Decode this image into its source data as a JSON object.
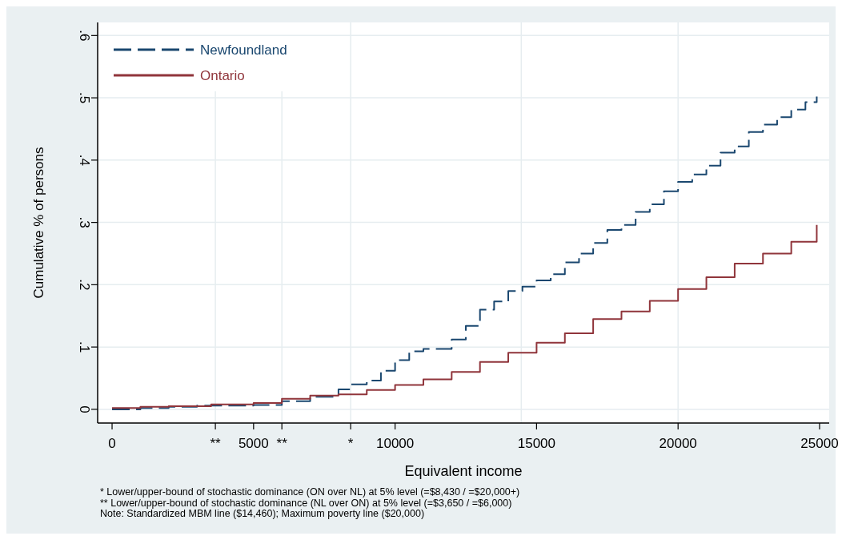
{
  "chart_data": {
    "type": "step",
    "xlabel": "Equivalent income",
    "ylabel": "Cumulative % of persons",
    "xlim": [
      -510,
      25340
    ],
    "ylim": [
      -0.022,
      0.621
    ],
    "xticks": [
      0,
      {
        "value": 3650,
        "label": "**"
      },
      5000,
      {
        "value": 6000,
        "label": "**"
      },
      {
        "value": 8430,
        "label": "*"
      },
      10000,
      15000,
      20000,
      25000
    ],
    "yticks": [
      {
        "value": 0,
        "label": "0"
      },
      {
        "value": 0.1,
        "label": ".1"
      },
      {
        "value": 0.2,
        "label": ".2"
      },
      {
        "value": 0.3,
        "label": ".3"
      },
      {
        "value": 0.4,
        "label": ".4"
      },
      {
        "value": 0.5,
        "label": ".5"
      },
      {
        "value": 0.6,
        "label": ".6"
      }
    ],
    "grid": "y",
    "legend": "top left",
    "ref_lines": [
      {
        "axis": "x",
        "value": 3650,
        "color": "#e6edf0"
      },
      {
        "axis": "x",
        "value": 6000,
        "color": "#e6edf0"
      },
      {
        "axis": "x",
        "value": 8430,
        "color": "#e6edf0"
      },
      {
        "axis": "x",
        "value": 14460,
        "color": "#e6edf0"
      },
      {
        "axis": "x",
        "value": 20000,
        "color": "#e6edf0"
      }
    ],
    "series": [
      {
        "name": "Newfoundland",
        "color": "#1a476f",
        "line_style": "dashed",
        "x": [
          0,
          1000,
          2000,
          3000,
          4000,
          5000,
          6000,
          7000,
          8000,
          8430,
          9000,
          9500,
          10000,
          10500,
          11000,
          12000,
          12500,
          13000,
          13500,
          14000,
          14500,
          15000,
          15500,
          16000,
          16500,
          17000,
          17500,
          18000,
          18500,
          19000,
          19500,
          20000,
          20500,
          21000,
          21500,
          22000,
          22500,
          23000,
          23500,
          24000,
          24500,
          24900
        ],
        "values": [
          0,
          0.002,
          0.004,
          0.006,
          0.006,
          0.007,
          0.013,
          0.02,
          0.032,
          0.04,
          0.046,
          0.062,
          0.079,
          0.093,
          0.097,
          0.112,
          0.134,
          0.16,
          0.173,
          0.19,
          0.197,
          0.207,
          0.217,
          0.236,
          0.25,
          0.267,
          0.288,
          0.296,
          0.317,
          0.329,
          0.35,
          0.365,
          0.377,
          0.391,
          0.412,
          0.422,
          0.445,
          0.457,
          0.469,
          0.481,
          0.493,
          0.502
        ]
      },
      {
        "name": "Ontario",
        "color": "#90353b",
        "line_style": "solid",
        "x": [
          0,
          1000,
          2000,
          3500,
          5000,
          6000,
          7000,
          8000,
          9000,
          10000,
          11000,
          12000,
          13000,
          14000,
          15000,
          16000,
          17000,
          18000,
          19000,
          20000,
          21000,
          22000,
          23000,
          24000,
          24900
        ],
        "values": [
          0.002,
          0.004,
          0.005,
          0.008,
          0.01,
          0.017,
          0.022,
          0.024,
          0.031,
          0.039,
          0.048,
          0.06,
          0.076,
          0.091,
          0.107,
          0.122,
          0.145,
          0.157,
          0.174,
          0.193,
          0.212,
          0.234,
          0.25,
          0.269,
          0.296
        ]
      }
    ],
    "annotations": [
      "*  Lower/upper-bound of stochastic dominance (ON over NL) at 5% level (=$8,430 / =$20,000+)",
      "**  Lower/upper-bound of stochastic dominance (NL over ON) at 5% level (=$3,650 / =$6,000)",
      "Note: Standardized MBM line ($14,460); Maximum poverty line ($20,000)"
    ]
  }
}
